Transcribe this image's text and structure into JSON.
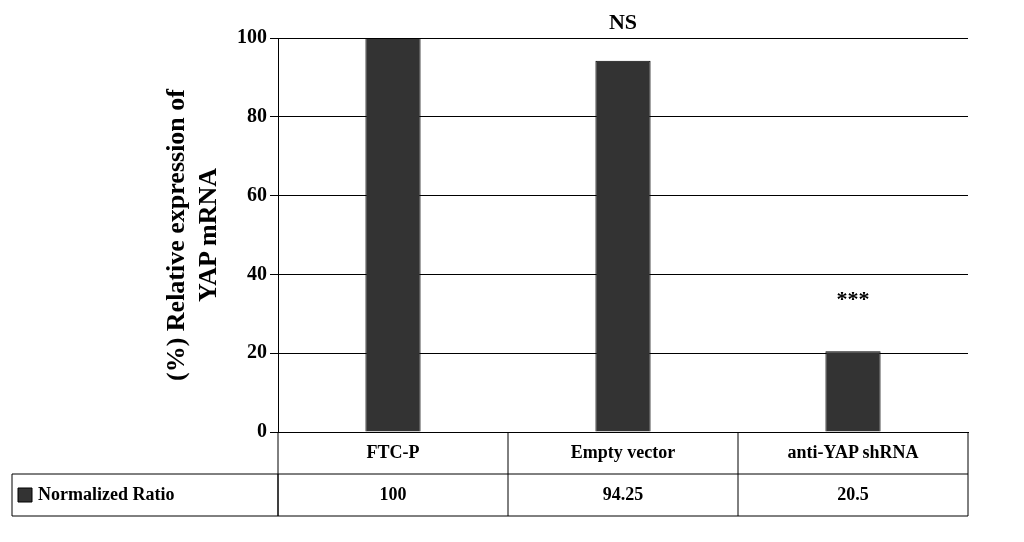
{
  "chart_data": {
    "type": "bar",
    "ylabel": "(%) Relative expression of YAP mRNA",
    "categories": [
      "FTC-P",
      "Empty vector",
      "anti-YAP shRNA"
    ],
    "series": [
      {
        "name": "Normalized Ratio",
        "color": "#333333",
        "values": [
          100,
          94.25,
          20.5
        ]
      }
    ],
    "ylim": [
      0,
      100
    ],
    "yticks": [
      0,
      20,
      40,
      60,
      80,
      100
    ],
    "grid": "y",
    "legend": "bottom left",
    "data_labels": true,
    "annotations": [
      "NS",
      "***"
    ]
  }
}
